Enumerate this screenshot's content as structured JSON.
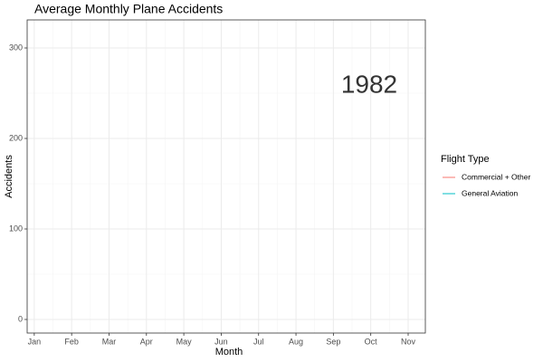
{
  "chart_data": {
    "type": "line",
    "title": "Average Monthly Plane Accidents",
    "annotation": "1982",
    "x_label": "Month",
    "y_label": "Accidents",
    "legend_title": "Flight Type",
    "categories": [
      "Jan",
      "Feb",
      "Mar",
      "Apr",
      "May",
      "Jun",
      "Jul",
      "Aug",
      "Sep",
      "Oct",
      "Nov"
    ],
    "series": [
      {
        "name": "Commercial + Other",
        "color": "#F8766D",
        "values": [
          null,
          null,
          null,
          null,
          null,
          null,
          null,
          null,
          null,
          null,
          null
        ]
      },
      {
        "name": "General Aviation",
        "color": "#00BFC4",
        "values": [
          null,
          null,
          null,
          null,
          null,
          null,
          null,
          null,
          null,
          null,
          null
        ]
      }
    ],
    "xlim": [
      -0.19,
      10.46
    ],
    "ylim": [
      -15,
      331
    ],
    "yticks": [
      0,
      100,
      200,
      300
    ],
    "grid": true,
    "legend": "right"
  }
}
